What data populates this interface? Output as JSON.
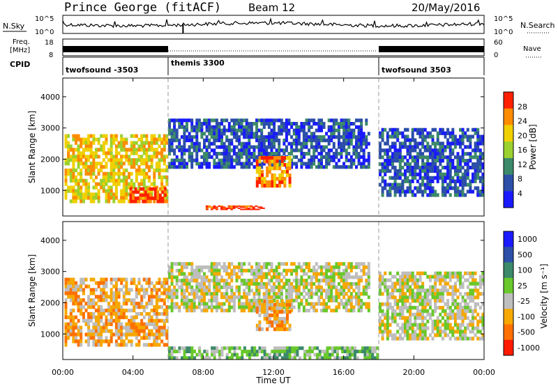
{
  "header": {
    "station": "Prince George (fitACF)",
    "beam": "Beam 12",
    "date": "20/May/2016"
  },
  "noise_panel": {
    "left_label": "N.Sky",
    "right_label": "N.Search",
    "left_ticks": [
      "10^5",
      "10^0"
    ],
    "right_ticks": [
      "10^5",
      "10^0"
    ]
  },
  "freq_panel": {
    "left_label_1": "Freq.",
    "left_label_2": "[MHz]",
    "left_ticks": [
      "18",
      "8"
    ],
    "right_label": "Nave",
    "right_ticks": [
      "60",
      "0"
    ]
  },
  "cpid_panel": {
    "label": "CPID",
    "segments": [
      {
        "name": "twofsound -3503",
        "start_hour": 0,
        "end_hour": 6
      },
      {
        "name": "themis 3300",
        "start_hour": 6,
        "end_hour": 18
      },
      {
        "name": "twofsound 3503",
        "start_hour": 18,
        "end_hour": 24
      }
    ]
  },
  "power_panel": {
    "ylabel": "Slant Range [km]",
    "yticks": [
      "1000",
      "2000",
      "3000",
      "4000"
    ],
    "colorbar_label": "Power [dB]",
    "colorbar_ticks": [
      "4",
      "8",
      "12",
      "16",
      "20",
      "24",
      "28"
    ],
    "colors": [
      "#1a1aff",
      "#2c4fa8",
      "#3c8a6a",
      "#9bd12e",
      "#f0d000",
      "#ff8c00",
      "#ff2000"
    ]
  },
  "velocity_panel": {
    "ylabel": "Slant Range [km]",
    "yticks": [
      "1000",
      "2000",
      "3000",
      "4000"
    ],
    "colorbar_label": "Velocity [m s⁻¹]",
    "colorbar_ticks": [
      "1000",
      "500",
      "100",
      "25",
      "-25",
      "-100",
      "-500",
      "-1000"
    ],
    "colors": [
      "#1a1aff",
      "#2c4fa8",
      "#3c8a6a",
      "#69c82b",
      "#bebebe",
      "#f6a800",
      "#ff7000",
      "#ff1a00"
    ]
  },
  "xaxis": {
    "label": "Time UT",
    "ticks": [
      "00:00",
      "04:00",
      "08:00",
      "12:00",
      "16:00",
      "20:00",
      "00:00"
    ]
  },
  "chart_data": [
    {
      "type": "heatmap",
      "title": "",
      "xlabel": "",
      "ylabel": "Slant Range [km]",
      "xlim": [
        0,
        24
      ],
      "ylim": [
        180,
        4600
      ],
      "colorbar": {
        "label": "Power [dB]",
        "ticks": [
          4,
          8,
          12,
          16,
          20,
          24,
          28
        ]
      },
      "regions": [
        {
          "t0": 0.1,
          "t1": 6.0,
          "r0": 600,
          "r1": 2800,
          "level": 4
        },
        {
          "t0": 3.8,
          "t1": 5.9,
          "r0": 600,
          "r1": 1100,
          "level": 6
        },
        {
          "t0": 6.0,
          "t1": 17.5,
          "r0": 1700,
          "r1": 3300,
          "level": 1
        },
        {
          "t0": 11.0,
          "t1": 13.0,
          "r0": 1100,
          "r1": 2100,
          "level": 5
        },
        {
          "t0": 8.0,
          "t1": 11.5,
          "r0": 380,
          "r1": 520,
          "level": 6
        },
        {
          "t0": 18.0,
          "t1": 24.0,
          "r0": 800,
          "r1": 3000,
          "level": 1
        }
      ]
    },
    {
      "type": "heatmap",
      "title": "",
      "xlabel": "Time UT",
      "ylabel": "Slant Range [km]",
      "xlim": [
        0,
        24
      ],
      "ylim": [
        180,
        4600
      ],
      "colorbar": {
        "label": "Velocity [m s⁻¹]",
        "ticks": [
          1000,
          500,
          100,
          25,
          -25,
          -100,
          -500,
          -1000
        ]
      },
      "regions": [
        {
          "t0": 0.1,
          "t1": 6.0,
          "r0": 600,
          "r1": 2800,
          "level": 5
        },
        {
          "t0": 6.0,
          "t1": 17.5,
          "r0": 1700,
          "r1": 3300,
          "level": 4
        },
        {
          "t0": 11.0,
          "t1": 13.0,
          "r0": 1100,
          "r1": 2100,
          "level": 5
        },
        {
          "t0": 6.0,
          "t1": 18.0,
          "r0": 180,
          "r1": 600,
          "level": 3
        },
        {
          "t0": 18.0,
          "t1": 24.0,
          "r0": 800,
          "r1": 3000,
          "level": 4
        }
      ]
    }
  ]
}
